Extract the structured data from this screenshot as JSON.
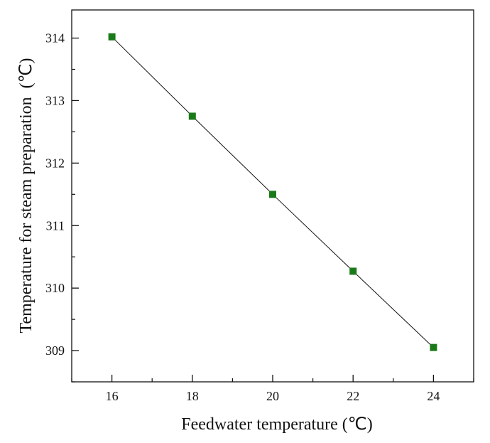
{
  "chart_data": {
    "type": "line",
    "title": "",
    "xlabel": "Feedwater temperature (℃)",
    "ylabel": "Temperature for steam preparation  (℃)",
    "xlim": [
      15,
      25
    ],
    "ylim": [
      308.5,
      314.45
    ],
    "x_ticks": [
      16,
      18,
      20,
      22,
      24
    ],
    "y_ticks": [
      309,
      310,
      311,
      312,
      313,
      314
    ],
    "x_tick_labels": [
      "16",
      "18",
      "20",
      "22",
      "24"
    ],
    "y_tick_labels": [
      "309",
      "310",
      "311",
      "312",
      "313",
      "314"
    ],
    "grid": false,
    "legend": "none",
    "marker": "square",
    "series": [
      {
        "color": "#1a7a1a",
        "line_color": "#111111",
        "x": [
          16,
          18,
          20,
          22,
          24
        ],
        "y": [
          314.02,
          312.75,
          311.5,
          310.27,
          309.05
        ]
      }
    ]
  }
}
